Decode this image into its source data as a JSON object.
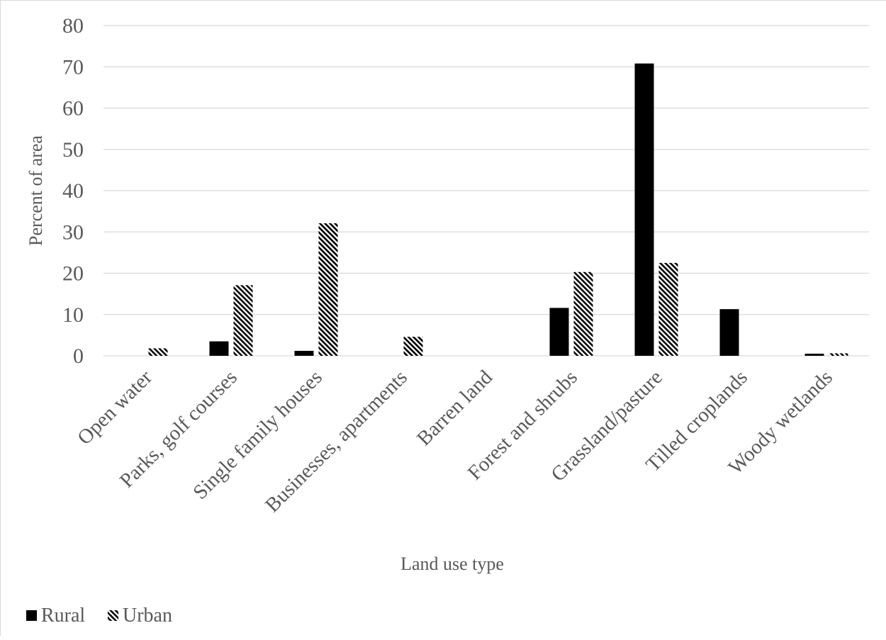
{
  "chart_data": {
    "type": "bar",
    "title": "",
    "xlabel": "Land use type",
    "ylabel": "Percent of area",
    "ylim": [
      0,
      80
    ],
    "yticks": [
      0,
      10,
      20,
      30,
      40,
      50,
      60,
      70,
      80
    ],
    "grid": true,
    "legend_position": "bottom-left",
    "categories": [
      "Open water",
      "Parks, golf courses",
      "Single family houses",
      "Businesses, apartments",
      "Barren land",
      "Forest and shrubs",
      "Grassland/pasture",
      "Tilled croplands",
      "Woody wetlands"
    ],
    "series": [
      {
        "name": "Rural",
        "fill": "solid",
        "color": "#000000",
        "values": [
          0,
          3.5,
          1.2,
          0,
          0,
          11.6,
          70.8,
          11.3,
          0.5
        ]
      },
      {
        "name": "Urban",
        "fill": "diagonal-hatch",
        "color": "#000000",
        "values": [
          1.8,
          17.1,
          32.1,
          4.6,
          0,
          20.3,
          22.5,
          0,
          0.6
        ]
      }
    ]
  }
}
